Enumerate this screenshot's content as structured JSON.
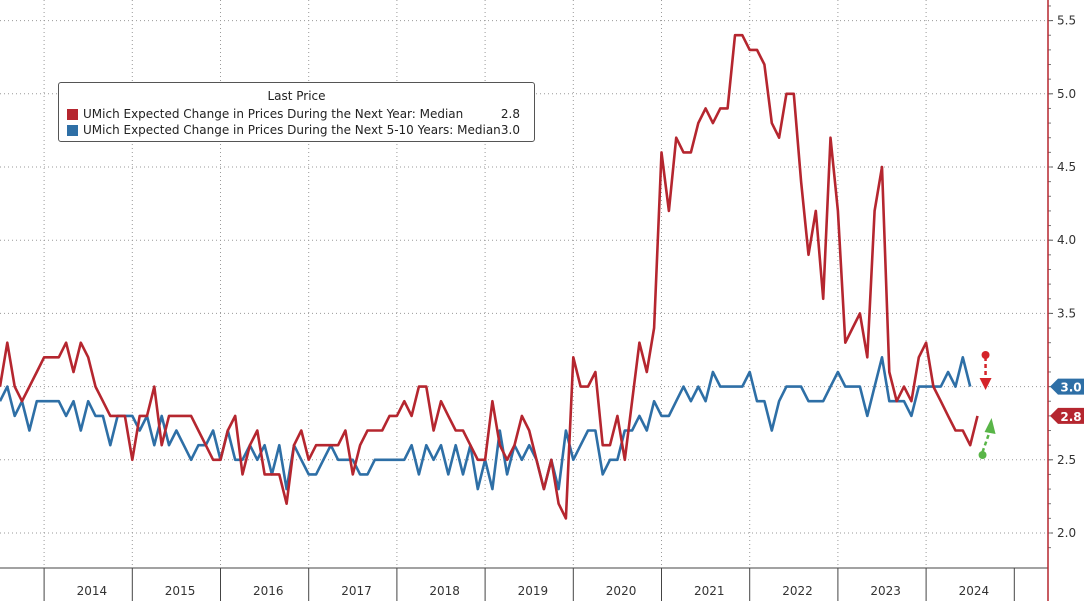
{
  "chart_data": {
    "type": "line",
    "title": "",
    "xlabel": "",
    "ylabel": "",
    "x_tick_labels": [
      "2014",
      "2015",
      "2016",
      "2017",
      "2018",
      "2019",
      "2020",
      "2021",
      "2022",
      "2023",
      "2024"
    ],
    "y_tick_labels": [
      "2.0",
      "2.5",
      "3.0",
      "3.5",
      "4.0",
      "4.5",
      "5.0",
      "5.5"
    ],
    "ylim": [
      1.8,
      5.65
    ],
    "grid": true,
    "legend": {
      "title": "Last Price",
      "placement": "top-left"
    },
    "start_month": "2013-06",
    "series": [
      {
        "name": "UMich Expected Change in Prices During the Next Year: Median",
        "last_value": "2.8",
        "color": "#b5262f",
        "values": [
          3.0,
          3.3,
          3.0,
          2.9,
          3.0,
          3.1,
          3.2,
          3.2,
          3.2,
          3.3,
          3.1,
          3.3,
          3.2,
          3.0,
          2.9,
          2.8,
          2.8,
          2.8,
          2.5,
          2.8,
          2.8,
          3.0,
          2.6,
          2.8,
          2.8,
          2.8,
          2.8,
          2.7,
          2.6,
          2.5,
          2.5,
          2.7,
          2.8,
          2.4,
          2.6,
          2.7,
          2.4,
          2.4,
          2.4,
          2.2,
          2.6,
          2.7,
          2.5,
          2.6,
          2.6,
          2.6,
          2.6,
          2.7,
          2.4,
          2.6,
          2.7,
          2.7,
          2.7,
          2.8,
          2.8,
          2.9,
          2.8,
          3.0,
          3.0,
          2.7,
          2.9,
          2.8,
          2.7,
          2.7,
          2.6,
          2.5,
          2.5,
          2.9,
          2.6,
          2.5,
          2.6,
          2.8,
          2.7,
          2.5,
          2.3,
          2.5,
          2.2,
          2.1,
          3.2,
          3.0,
          3.0,
          3.1,
          2.6,
          2.6,
          2.8,
          2.5,
          2.9,
          3.3,
          3.1,
          3.4,
          4.6,
          4.2,
          4.7,
          4.6,
          4.6,
          4.8,
          4.9,
          4.8,
          4.9,
          4.9,
          5.4,
          5.4,
          5.3,
          5.3,
          5.2,
          4.8,
          4.7,
          5.0,
          5.0,
          4.4,
          3.9,
          4.2,
          3.6,
          4.7,
          4.2,
          3.3,
          3.4,
          3.5,
          3.2,
          4.2,
          4.5,
          3.1,
          2.9,
          3.0,
          2.9,
          3.2,
          3.3,
          3.0,
          2.9,
          2.8,
          2.7,
          2.7,
          2.6,
          2.8
        ]
      },
      {
        "name": "UMich Expected Change in Prices During the Next 5-10 Years: Median",
        "last_value": "3.0",
        "color": "#2e6fa6",
        "values": [
          2.9,
          3.0,
          2.8,
          2.9,
          2.7,
          2.9,
          2.9,
          2.9,
          2.9,
          2.8,
          2.9,
          2.7,
          2.9,
          2.8,
          2.8,
          2.6,
          2.8,
          2.8,
          2.8,
          2.7,
          2.8,
          2.6,
          2.8,
          2.6,
          2.7,
          2.6,
          2.5,
          2.6,
          2.6,
          2.7,
          2.5,
          2.7,
          2.5,
          2.5,
          2.6,
          2.5,
          2.6,
          2.4,
          2.6,
          2.3,
          2.6,
          2.5,
          2.4,
          2.4,
          2.5,
          2.6,
          2.5,
          2.5,
          2.5,
          2.4,
          2.4,
          2.5,
          2.5,
          2.5,
          2.5,
          2.5,
          2.6,
          2.4,
          2.6,
          2.5,
          2.6,
          2.4,
          2.6,
          2.4,
          2.6,
          2.3,
          2.5,
          2.3,
          2.7,
          2.4,
          2.6,
          2.5,
          2.6,
          2.5,
          2.3,
          2.5,
          2.3,
          2.7,
          2.5,
          2.6,
          2.7,
          2.7,
          2.4,
          2.5,
          2.5,
          2.7,
          2.7,
          2.8,
          2.7,
          2.9,
          2.8,
          2.8,
          2.9,
          3.0,
          2.9,
          3.0,
          2.9,
          3.1,
          3.0,
          3.0,
          3.0,
          3.0,
          3.1,
          2.9,
          2.9,
          2.7,
          2.9,
          3.0,
          3.0,
          3.0,
          2.9,
          2.9,
          2.9,
          3.0,
          3.1,
          3.0,
          3.0,
          3.0,
          2.8,
          3.0,
          3.2,
          2.9,
          2.9,
          2.9,
          2.8,
          3.0,
          3.0,
          3.0,
          3.0,
          3.1,
          3.0,
          3.2,
          3.0
        ]
      }
    ]
  }
}
